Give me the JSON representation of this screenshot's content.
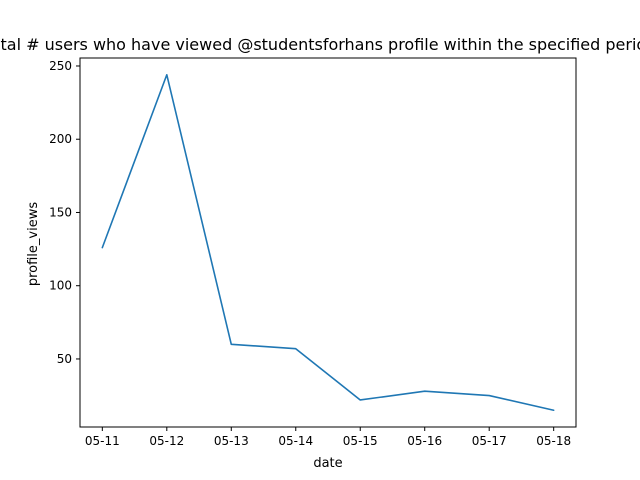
{
  "chart_data": {
    "type": "line",
    "title": "Total # users who have viewed @studentsforhans profile within the specified period",
    "xlabel": "date",
    "ylabel": "profile_views",
    "categories": [
      "05-11",
      "05-12",
      "05-13",
      "05-14",
      "05-15",
      "05-16",
      "05-17",
      "05-18"
    ],
    "series": [
      {
        "values": [
          126,
          244,
          60,
          57,
          22,
          28,
          25,
          15
        ]
      }
    ],
    "yticks": [
      50,
      100,
      150,
      200,
      250
    ],
    "ylim": [
      3.55,
      255.45
    ],
    "grid": false,
    "line_color": "#1f77b4"
  }
}
